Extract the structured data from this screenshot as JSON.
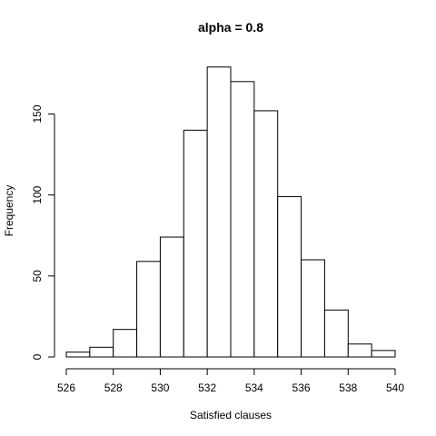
{
  "chart_data": {
    "type": "bar",
    "title": "alpha = 0.8",
    "xlabel": "Satisfied clauses",
    "ylabel": "Frequency",
    "bins": [
      {
        "x0": 526,
        "x1": 527,
        "count": 3
      },
      {
        "x0": 527,
        "x1": 528,
        "count": 6
      },
      {
        "x0": 528,
        "x1": 529,
        "count": 17
      },
      {
        "x0": 529,
        "x1": 530,
        "count": 59
      },
      {
        "x0": 530,
        "x1": 531,
        "count": 74
      },
      {
        "x0": 531,
        "x1": 532,
        "count": 140
      },
      {
        "x0": 532,
        "x1": 533,
        "count": 179
      },
      {
        "x0": 533,
        "x1": 534,
        "count": 170
      },
      {
        "x0": 534,
        "x1": 535,
        "count": 152
      },
      {
        "x0": 535,
        "x1": 536,
        "count": 99
      },
      {
        "x0": 536,
        "x1": 537,
        "count": 60
      },
      {
        "x0": 537,
        "x1": 538,
        "count": 29
      },
      {
        "x0": 538,
        "x1": 539,
        "count": 8
      },
      {
        "x0": 539,
        "x1": 540,
        "count": 4
      }
    ],
    "xlim": [
      526,
      540
    ],
    "ylim": [
      0,
      180
    ],
    "x_ticks": [
      "526",
      "528",
      "530",
      "532",
      "534",
      "536",
      "538",
      "540"
    ],
    "y_ticks": [
      "0",
      "50",
      "100",
      "150"
    ],
    "grid": false
  }
}
